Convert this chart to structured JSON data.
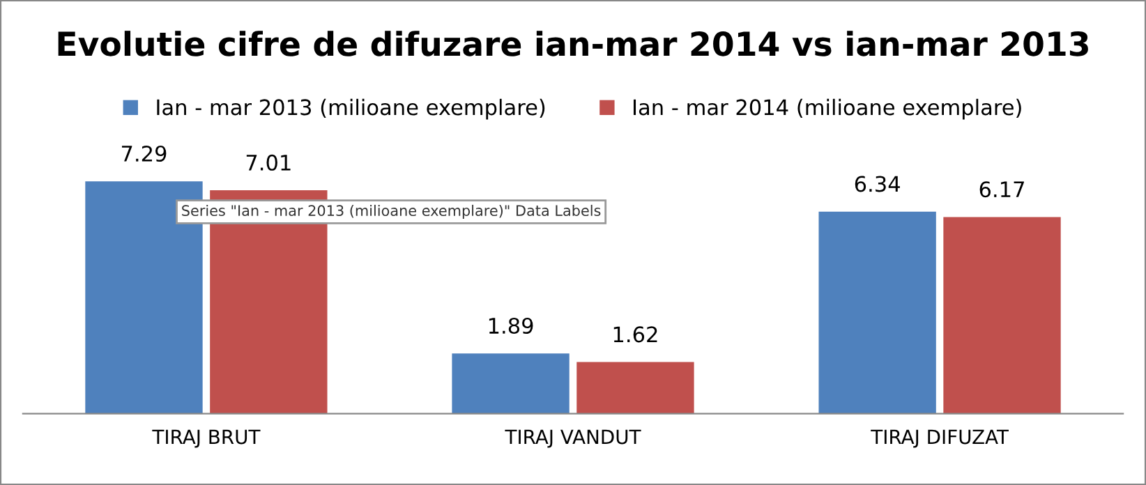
{
  "chart_data": {
    "type": "bar",
    "title": "Evolutie cifre de difuzare ian-mar 2014 vs ian-mar 2013",
    "categories": [
      "TIRAJ BRUT",
      "TIRAJ VANDUT",
      "TIRAJ DIFUZAT"
    ],
    "series": [
      {
        "name": "Ian - mar 2013 (milioane exemplare)",
        "color": "#4f81bd",
        "values": [
          7.29,
          1.89,
          6.34
        ]
      },
      {
        "name": "Ian - mar 2014 (milioane exemplare)",
        "color": "#c0504d",
        "values": [
          7.01,
          1.62,
          6.17
        ]
      }
    ],
    "data_labels": true,
    "legend": "top",
    "grid": false,
    "annotations": [
      "Series \"Ian - mar 2013 (milioane exemplare)\" Data Labels"
    ]
  }
}
